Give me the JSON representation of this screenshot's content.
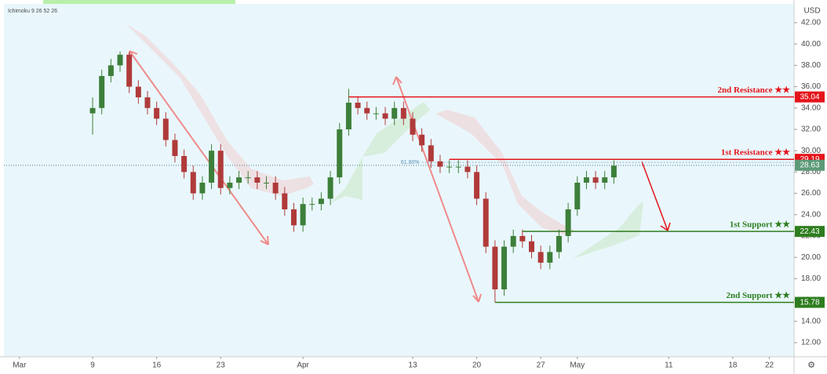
{
  "chart_data": {
    "type": "candlestick",
    "title": "Ichimoku 9 26 52 26",
    "currency": "USD",
    "xlim": [
      -1.7,
      84.7
    ],
    "xticks": [
      {
        "value": 0,
        "label": "Mar"
      },
      {
        "value": 8,
        "label": "9"
      },
      {
        "value": 15,
        "label": "16"
      },
      {
        "value": 22,
        "label": "23"
      },
      {
        "value": 31,
        "label": "Apr"
      },
      {
        "value": 43,
        "label": "13"
      },
      {
        "value": 50,
        "label": "20"
      },
      {
        "value": 57,
        "label": "27"
      },
      {
        "value": 61,
        "label": "May"
      },
      {
        "value": 71,
        "label": "11"
      },
      {
        "value": 78,
        "label": "18"
      },
      {
        "value": 82,
        "label": "22"
      }
    ],
    "ylim": [
      10.68,
      43.76
    ],
    "yticks": [
      {
        "value": 12,
        "label": "12.00"
      },
      {
        "value": 14,
        "label": "14.00"
      },
      {
        "value": 16,
        "label": "16.00"
      },
      {
        "value": 18,
        "label": "18.00"
      },
      {
        "value": 20,
        "label": "20.00"
      },
      {
        "value": 22,
        "label": "22.00"
      },
      {
        "value": 24,
        "label": "24.00"
      },
      {
        "value": 26,
        "label": "26.00"
      },
      {
        "value": 28,
        "label": "28.00"
      },
      {
        "value": 30,
        "label": "30.00"
      },
      {
        "value": 32,
        "label": "32.00"
      },
      {
        "value": 34,
        "label": "34.00"
      },
      {
        "value": 36,
        "label": "36.00"
      },
      {
        "value": 38,
        "label": "38.00"
      },
      {
        "value": 40,
        "label": "40.00"
      },
      {
        "value": 42,
        "label": "42.00"
      }
    ],
    "up_color": "#3d7f3a",
    "down_color": "#b03a3a",
    "x": [
      8,
      9,
      10,
      11,
      12,
      13,
      14,
      15,
      16,
      17,
      18,
      19,
      20,
      21,
      22,
      23,
      24,
      25,
      26,
      27,
      28,
      29,
      30,
      31,
      32,
      33,
      34,
      35,
      36,
      37,
      38,
      39,
      40,
      41,
      42,
      43,
      44,
      45,
      46,
      47,
      48,
      49,
      50,
      51,
      52,
      53,
      54,
      55,
      56,
      57,
      58,
      59,
      60,
      61,
      62,
      63,
      64,
      65
    ],
    "open": [
      33.5,
      34,
      37,
      38,
      39,
      36,
      35,
      34,
      33,
      31,
      29.5,
      28,
      26,
      27,
      30,
      26.5,
      27,
      27.5,
      27.5,
      27,
      27,
      26,
      24.5,
      23,
      25,
      25,
      25.5,
      27.5,
      32,
      34.5,
      34,
      33.5,
      33.5,
      33,
      34,
      33,
      31.5,
      30.5,
      29,
      28.5,
      28.5,
      28.5,
      28,
      25.5,
      21,
      17,
      21,
      22,
      21.5,
      20.5,
      19.5,
      20.5,
      22,
      24.5,
      27,
      27.5,
      27,
      27.5
    ],
    "high": [
      35,
      37.6,
      38.6,
      39.3,
      39.2,
      36.6,
      35.6,
      34.6,
      33.6,
      31.6,
      30.1,
      28.6,
      27.6,
      30.6,
      30.6,
      27.6,
      28.1,
      28.1,
      28.1,
      27.6,
      27.6,
      26.6,
      25.1,
      25.6,
      25.6,
      26.1,
      28.1,
      32.6,
      35.8,
      35.1,
      34.6,
      34.1,
      34.1,
      34.6,
      34.6,
      33.6,
      32.1,
      31.1,
      29.6,
      29.1,
      29.1,
      29.1,
      28.6,
      26.1,
      21.6,
      21.6,
      22.6,
      22.6,
      22.1,
      21.1,
      21.1,
      22.6,
      25.1,
      27.6,
      28.1,
      28.1,
      28.1,
      29.1
    ],
    "low": [
      31.5,
      33.4,
      36.4,
      37.4,
      35.4,
      34.4,
      33.4,
      32.4,
      30.4,
      28.9,
      27.4,
      25.4,
      25.4,
      26.4,
      25.9,
      25.9,
      26.4,
      26.9,
      26.4,
      26.4,
      25.4,
      23.9,
      22.4,
      22.4,
      24.4,
      24.4,
      24.9,
      26.9,
      31.4,
      33.4,
      32.9,
      32.9,
      32.4,
      32.4,
      32.4,
      30.9,
      29.9,
      28.4,
      27.9,
      27.9,
      27.9,
      27.4,
      24.9,
      20.4,
      15.8,
      16.4,
      20.4,
      20.9,
      19.9,
      18.9,
      18.9,
      19.9,
      21.4,
      23.9,
      26.4,
      26.4,
      26.4,
      26.9
    ],
    "close": [
      34,
      37,
      38,
      39,
      36,
      35,
      34,
      33,
      31,
      29.5,
      28,
      26,
      27,
      30,
      26.5,
      27,
      27.5,
      27.5,
      27,
      27,
      26,
      24.5,
      23,
      25,
      25,
      25.5,
      27.5,
      32,
      34.5,
      34,
      33.5,
      33.5,
      33,
      34,
      33,
      31.5,
      30.5,
      29,
      28.5,
      28.5,
      28.5,
      28,
      25.5,
      21,
      17,
      21,
      22,
      21.5,
      20.5,
      19.5,
      20.5,
      22,
      24.5,
      27,
      27.5,
      27,
      27.5,
      28.6
    ],
    "levels": [
      {
        "label": "2nd Resistance ★★",
        "value": 35.04,
        "from": 36,
        "color": "#e5141b"
      },
      {
        "label": "1st Resistance ★★",
        "value": 29.19,
        "from": 47,
        "color": "#e5141b"
      },
      {
        "label": "1st Support ★★",
        "value": 22.43,
        "from": 55,
        "color": "#2e7d1f"
      },
      {
        "label": "2nd Support ★★",
        "value": 15.78,
        "from": 52,
        "color": "#2e7d1f"
      }
    ],
    "last_price": 28.63,
    "last_price_color": "#5d9a78",
    "fib_label": "61.80%",
    "fib_level": 28.9
  }
}
